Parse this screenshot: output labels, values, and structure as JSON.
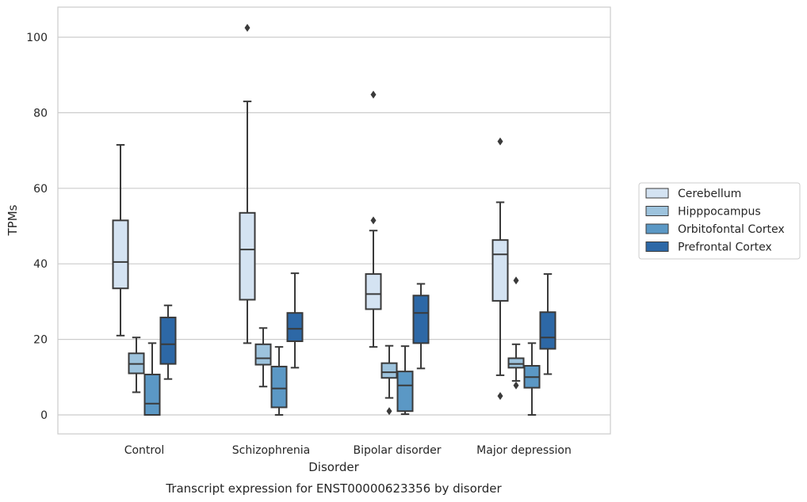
{
  "caption": "Transcript expression for ENST00000623356 by disorder",
  "chart_data": {
    "type": "box",
    "title": "",
    "xlabel": "Disorder",
    "ylabel": "TPMs",
    "ylim": [
      -5,
      108
    ],
    "yticks": [
      0,
      20,
      40,
      60,
      80,
      100
    ],
    "grid": "horizontal",
    "legend_position": "right",
    "categories": [
      "Control",
      "Schizophrenia",
      "Bipolar disorder",
      "Major depression"
    ],
    "series": [
      {
        "name": "Cerebellum",
        "color": "#d4e3f2",
        "boxes": [
          {
            "whisker_low": 21,
            "q1": 33.5,
            "median": 40.5,
            "q3": 51.5,
            "whisker_high": 71.5,
            "outliers": []
          },
          {
            "whisker_low": 19,
            "q1": 30.5,
            "median": 43.8,
            "q3": 53.5,
            "whisker_high": 83,
            "outliers": [
              102.5
            ]
          },
          {
            "whisker_low": 18,
            "q1": 28,
            "median": 32,
            "q3": 37.3,
            "whisker_high": 48.8,
            "outliers": [
              51.5,
              84.8
            ]
          },
          {
            "whisker_low": 10.5,
            "q1": 30.2,
            "median": 42.5,
            "q3": 46.3,
            "whisker_high": 56.3,
            "outliers": [
              5,
              72.4
            ]
          }
        ]
      },
      {
        "name": "Hipppocampus",
        "color": "#9dc3dd",
        "boxes": [
          {
            "whisker_low": 6,
            "q1": 11,
            "median": 13.5,
            "q3": 16.3,
            "whisker_high": 20.5,
            "outliers": []
          },
          {
            "whisker_low": 7.5,
            "q1": 13.3,
            "median": 15,
            "q3": 18.7,
            "whisker_high": 23,
            "outliers": []
          },
          {
            "whisker_low": 4.5,
            "q1": 9.8,
            "median": 11.3,
            "q3": 13.7,
            "whisker_high": 18.3,
            "outliers": [
              1
            ]
          },
          {
            "whisker_low": 9,
            "q1": 12.5,
            "median": 13.5,
            "q3": 15,
            "whisker_high": 18.7,
            "outliers": [
              7.8,
              35.6
            ]
          }
        ]
      },
      {
        "name": "Orbitofontal Cortex",
        "color": "#5b98c5",
        "boxes": [
          {
            "whisker_low": 0,
            "q1": 0,
            "median": 3,
            "q3": 10.7,
            "whisker_high": 19,
            "outliers": []
          },
          {
            "whisker_low": 0,
            "q1": 2,
            "median": 7,
            "q3": 12.8,
            "whisker_high": 18,
            "outliers": []
          },
          {
            "whisker_low": 0.2,
            "q1": 1,
            "median": 7.8,
            "q3": 11.5,
            "whisker_high": 18.2,
            "outliers": []
          },
          {
            "whisker_low": 0,
            "q1": 7.2,
            "median": 10,
            "q3": 13,
            "whisker_high": 19,
            "outliers": []
          }
        ]
      },
      {
        "name": "Prefrontal Cortex",
        "color": "#2d68a6",
        "boxes": [
          {
            "whisker_low": 9.5,
            "q1": 13.5,
            "median": 18.7,
            "q3": 25.8,
            "whisker_high": 29,
            "outliers": []
          },
          {
            "whisker_low": 12.5,
            "q1": 19.5,
            "median": 22.8,
            "q3": 27,
            "whisker_high": 37.5,
            "outliers": []
          },
          {
            "whisker_low": 12.3,
            "q1": 19,
            "median": 27,
            "q3": 31.6,
            "whisker_high": 34.7,
            "outliers": []
          },
          {
            "whisker_low": 10.8,
            "q1": 17.5,
            "median": 20.5,
            "q3": 27.2,
            "whisker_high": 37.3,
            "outliers": []
          }
        ]
      }
    ]
  }
}
